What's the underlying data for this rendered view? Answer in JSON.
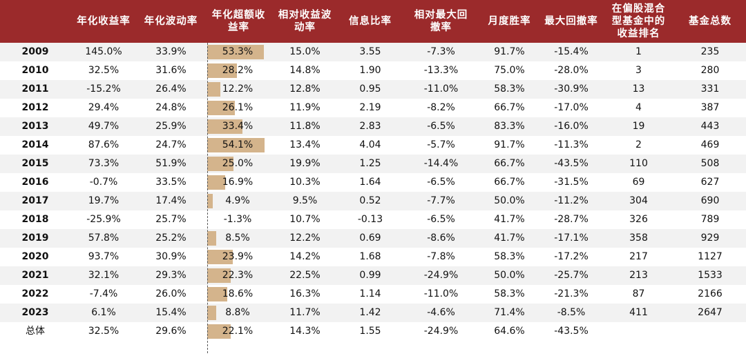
{
  "table": {
    "headers": [
      {
        "key": "year",
        "label": ""
      },
      {
        "key": "ann_ret",
        "label": "年化收益率"
      },
      {
        "key": "ann_vol",
        "label": "年化波动率"
      },
      {
        "key": "excess",
        "label": "年化超额收益率"
      },
      {
        "key": "rel_vol",
        "label": "相对收益波动率"
      },
      {
        "key": "ir",
        "label": "信息比率"
      },
      {
        "key": "rel_dd",
        "label": "相对最大回撤率"
      },
      {
        "key": "win",
        "label": "月度胜率"
      },
      {
        "key": "max_dd",
        "label": "最大回撤率"
      },
      {
        "key": "rank",
        "label": "在偏股混合型基金中的收益排名"
      },
      {
        "key": "total",
        "label": "基金总数"
      }
    ],
    "header_lines": [
      [
        ""
      ],
      [
        "年化收益率"
      ],
      [
        "年化波动率"
      ],
      [
        "年化超额收",
        "益率"
      ],
      [
        "相对收益波",
        "动率"
      ],
      [
        "信息比率"
      ],
      [
        "相对最大回",
        "撤率"
      ],
      [
        "月度胜率"
      ],
      [
        "最大回撤率"
      ],
      [
        "在偏股混合",
        "型基金中的",
        "收益排名"
      ],
      [
        "基金总数"
      ]
    ],
    "rows": [
      [
        "2009",
        "145.0%",
        "33.9%",
        "53.3%",
        "15.0%",
        "3.55",
        "-7.3%",
        "91.7%",
        "-15.4%",
        "1",
        "235"
      ],
      [
        "2010",
        "32.5%",
        "31.6%",
        "28.2%",
        "14.8%",
        "1.90",
        "-13.3%",
        "75.0%",
        "-28.0%",
        "3",
        "280"
      ],
      [
        "2011",
        "-15.2%",
        "26.4%",
        "12.2%",
        "12.8%",
        "0.95",
        "-11.0%",
        "58.3%",
        "-30.9%",
        "13",
        "331"
      ],
      [
        "2012",
        "29.4%",
        "24.8%",
        "26.1%",
        "11.9%",
        "2.19",
        "-8.2%",
        "66.7%",
        "-17.0%",
        "4",
        "387"
      ],
      [
        "2013",
        "49.7%",
        "25.9%",
        "33.4%",
        "11.8%",
        "2.83",
        "-6.5%",
        "83.3%",
        "-16.0%",
        "19",
        "443"
      ],
      [
        "2014",
        "87.6%",
        "24.7%",
        "54.1%",
        "13.4%",
        "4.04",
        "-5.7%",
        "91.7%",
        "-11.3%",
        "2",
        "469"
      ],
      [
        "2015",
        "73.3%",
        "51.9%",
        "25.0%",
        "19.9%",
        "1.25",
        "-14.4%",
        "66.7%",
        "-43.5%",
        "110",
        "508"
      ],
      [
        "2016",
        "-0.7%",
        "33.5%",
        "16.9%",
        "10.3%",
        "1.64",
        "-6.5%",
        "66.7%",
        "-31.5%",
        "69",
        "627"
      ],
      [
        "2017",
        "19.7%",
        "17.4%",
        "4.9%",
        "9.5%",
        "0.52",
        "-7.7%",
        "50.0%",
        "-11.2%",
        "304",
        "690"
      ],
      [
        "2018",
        "-25.9%",
        "25.7%",
        "-1.3%",
        "10.7%",
        "-0.13",
        "-6.5%",
        "41.7%",
        "-28.7%",
        "326",
        "789"
      ],
      [
        "2019",
        "57.8%",
        "25.2%",
        "8.5%",
        "12.2%",
        "0.69",
        "-8.6%",
        "41.7%",
        "-17.1%",
        "358",
        "929"
      ],
      [
        "2020",
        "93.7%",
        "30.9%",
        "23.9%",
        "14.2%",
        "1.68",
        "-7.8%",
        "58.3%",
        "-17.2%",
        "217",
        "1127"
      ],
      [
        "2021",
        "32.1%",
        "29.3%",
        "22.3%",
        "22.5%",
        "0.99",
        "-24.9%",
        "50.0%",
        "-25.7%",
        "213",
        "1533"
      ],
      [
        "2022",
        "-7.4%",
        "26.0%",
        "18.6%",
        "16.3%",
        "1.14",
        "-11.0%",
        "58.3%",
        "-21.3%",
        "87",
        "2166"
      ],
      [
        "2023",
        "6.1%",
        "15.4%",
        "8.8%",
        "11.7%",
        "1.42",
        "-4.6%",
        "71.4%",
        "-8.5%",
        "411",
        "2647"
      ],
      [
        "总体",
        "32.5%",
        "29.6%",
        "22.1%",
        "14.3%",
        "1.55",
        "-24.9%",
        "64.6%",
        "-43.5%",
        "",
        ""
      ]
    ]
  },
  "chart_data": {
    "type": "table",
    "title": "",
    "bar_column": "年化超额收益率",
    "categories": [
      "2009",
      "2010",
      "2011",
      "2012",
      "2013",
      "2014",
      "2015",
      "2016",
      "2017",
      "2018",
      "2019",
      "2020",
      "2021",
      "2022",
      "2023",
      "总体"
    ],
    "values": [
      53.3,
      28.2,
      12.2,
      26.1,
      33.4,
      54.1,
      25.0,
      16.9,
      4.9,
      -1.3,
      8.5,
      23.9,
      22.3,
      18.6,
      8.8,
      22.1
    ],
    "xlim": [
      0,
      60
    ]
  },
  "colors": {
    "header_bg": "#9b2a2b",
    "header_text": "#ffffff",
    "bar": "#d4b48c",
    "alt_row": "#f2f2f2"
  }
}
